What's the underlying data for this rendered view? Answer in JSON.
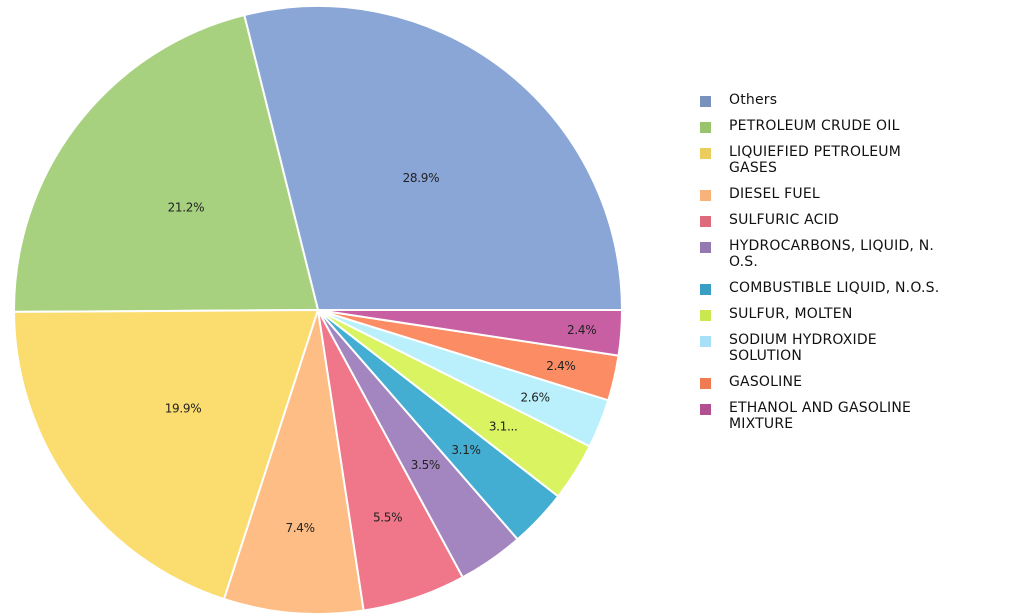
{
  "chart_data": {
    "type": "pie",
    "slices": [
      {
        "label": "Others",
        "value": 28.9,
        "display": "28.9%",
        "color": "#8aa6d6"
      },
      {
        "label": "PETROLEUM CRUDE OIL",
        "value": 21.2,
        "display": "21.2%",
        "color": "#a7d17f"
      },
      {
        "label": "LIQUIEFIED PETROLEUM GASES",
        "value": 19.9,
        "display": "19.9%",
        "color": "#fbdc6e"
      },
      {
        "label": "DIESEL FUEL",
        "value": 7.4,
        "display": "7.4%",
        "color": "#fdbd84"
      },
      {
        "label": "SULFURIC ACID",
        "value": 5.5,
        "display": "5.5%",
        "color": "#ef7789"
      },
      {
        "label": "HYDROCARBONS, LIQUID, N.O.S.",
        "value": 3.5,
        "display": "3.5%",
        "color": "#a386bf"
      },
      {
        "label": "COMBUSTIBLE LIQUID, N.O.S.",
        "value": 3.1,
        "display": "3.1%",
        "color": "#44aed2"
      },
      {
        "label": "SULFUR, MOLTEN",
        "value": 3.1,
        "display": "3.1...",
        "color": "#d9f361"
      },
      {
        "label": "SODIUM HYDROXIDE SOLUTION",
        "value": 2.6,
        "display": "2.6%",
        "color": "#b9f0fb"
      },
      {
        "label": "GASOLINE",
        "value": 2.4,
        "display": "2.4%",
        "color": "#fb8c63"
      },
      {
        "label": "ETHANOL AND GASOLINE MIXTURE",
        "value": 2.4,
        "display": "2.4%",
        "color": "#c85fa3"
      }
    ],
    "legend": {
      "placement": "right",
      "entries": [
        {
          "text": "Others",
          "color": "#7892bd"
        },
        {
          "text": "PETROLEUM CRUDE OIL",
          "color": "#99c46c"
        },
        {
          "text": "LIQUIEFIED PETROLEUM\nGASES",
          "color": "#ebcd5e"
        },
        {
          "text": "DIESEL FUEL",
          "color": "#f7b379"
        },
        {
          "text": "SULFURIC ACID",
          "color": "#dd6a7d"
        },
        {
          "text": "HYDROCARBONS, LIQUID, N.\nO.S.",
          "color": "#9479b1"
        },
        {
          "text": "COMBUSTIBLE LIQUID, N.O.S.",
          "color": "#3a9ec3"
        },
        {
          "text": "SULFUR, MOLTEN",
          "color": "#c9e74e"
        },
        {
          "text": "SODIUM HYDROXIDE\nSOLUTION",
          "color": "#a8e1f7"
        },
        {
          "text": "GASOLINE",
          "color": "#f07b52"
        },
        {
          "text": "ETHANOL AND GASOLINE\nMIXTURE",
          "color": "#b35091"
        }
      ]
    }
  }
}
